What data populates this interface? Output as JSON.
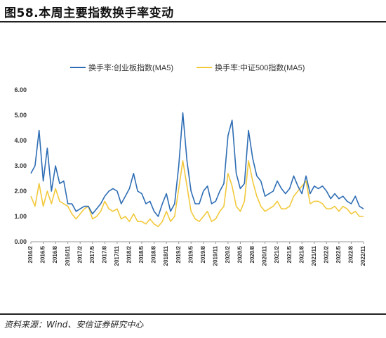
{
  "figure": {
    "title": "图58.本周主要指数换手率变动",
    "source": "资料来源：Wind、安信证券研究中心"
  },
  "chart_data": {
    "type": "line",
    "title": "",
    "xlabel": "",
    "ylabel": "",
    "ylim": [
      0,
      6
    ],
    "yticks": [
      "0.00",
      "1.00",
      "2.00",
      "3.00",
      "4.00",
      "5.00",
      "6.00"
    ],
    "xlim": [
      "2016/2",
      "2022/11"
    ],
    "xticks": [
      "2016/2",
      "2016/5",
      "2016/8",
      "2016/11",
      "2017/2",
      "2017/5",
      "2017/8",
      "2017/11",
      "2018/2",
      "2018/5",
      "2018/8",
      "2018/11",
      "2019/2",
      "2019/5",
      "2019/8",
      "2019/11",
      "2020/2",
      "2020/5",
      "2020/8",
      "2020/11",
      "2021/2",
      "2021/5",
      "2021/8",
      "2021/11",
      "2022/2",
      "2022/5",
      "2022/8",
      "2022/11"
    ],
    "grid": false,
    "legend_position": "top",
    "series": [
      {
        "name": "换手率:创业板指数(MA5)",
        "color": "#2E6DB4",
        "points": [
          [
            "2016/2",
            2.7
          ],
          [
            "2016/3",
            3.0
          ],
          [
            "2016/4",
            4.4
          ],
          [
            "2016/5",
            2.4
          ],
          [
            "2016/6",
            3.7
          ],
          [
            "2016/7",
            2.0
          ],
          [
            "2016/8",
            3.0
          ],
          [
            "2016/9",
            2.3
          ],
          [
            "2016/10",
            2.4
          ],
          [
            "2016/11",
            1.5
          ],
          [
            "2016/12",
            1.5
          ],
          [
            "2017/1",
            1.2
          ],
          [
            "2017/2",
            1.3
          ],
          [
            "2017/3",
            1.4
          ],
          [
            "2017/4",
            1.4
          ],
          [
            "2017/5",
            1.1
          ],
          [
            "2017/6",
            1.3
          ],
          [
            "2017/7",
            1.5
          ],
          [
            "2017/8",
            1.8
          ],
          [
            "2017/9",
            2.0
          ],
          [
            "2017/10",
            2.1
          ],
          [
            "2017/11",
            2.0
          ],
          [
            "2017/12",
            1.5
          ],
          [
            "2018/1",
            1.8
          ],
          [
            "2018/2",
            2.1
          ],
          [
            "2018/3",
            2.7
          ],
          [
            "2018/4",
            2.0
          ],
          [
            "2018/5",
            1.9
          ],
          [
            "2018/6",
            1.5
          ],
          [
            "2018/7",
            1.6
          ],
          [
            "2018/8",
            1.2
          ],
          [
            "2018/9",
            1.0
          ],
          [
            "2018/10",
            1.5
          ],
          [
            "2018/11",
            1.9
          ],
          [
            "2018/12",
            1.2
          ],
          [
            "2019/1",
            1.5
          ],
          [
            "2019/2",
            3.0
          ],
          [
            "2019/3",
            5.1
          ],
          [
            "2019/4",
            3.2
          ],
          [
            "2019/5",
            2.0
          ],
          [
            "2019/6",
            1.5
          ],
          [
            "2019/7",
            1.5
          ],
          [
            "2019/8",
            2.0
          ],
          [
            "2019/9",
            2.2
          ],
          [
            "2019/10",
            1.5
          ],
          [
            "2019/11",
            1.6
          ],
          [
            "2019/12",
            2.0
          ],
          [
            "2020/1",
            2.3
          ],
          [
            "2020/2",
            4.2
          ],
          [
            "2020/3",
            4.8
          ],
          [
            "2020/4",
            2.7
          ],
          [
            "2020/5",
            2.1
          ],
          [
            "2020/6",
            2.3
          ],
          [
            "2020/7",
            4.4
          ],
          [
            "2020/8",
            3.3
          ],
          [
            "2020/9",
            2.6
          ],
          [
            "2020/10",
            2.4
          ],
          [
            "2020/11",
            1.8
          ],
          [
            "2020/12",
            1.9
          ],
          [
            "2021/1",
            2.0
          ],
          [
            "2021/2",
            2.4
          ],
          [
            "2021/3",
            2.1
          ],
          [
            "2021/4",
            1.9
          ],
          [
            "2021/5",
            2.1
          ],
          [
            "2021/6",
            2.6
          ],
          [
            "2021/7",
            2.2
          ],
          [
            "2021/8",
            1.9
          ],
          [
            "2021/9",
            2.6
          ],
          [
            "2021/10",
            1.9
          ],
          [
            "2021/11",
            2.2
          ],
          [
            "2021/12",
            2.1
          ],
          [
            "2022/1",
            2.2
          ],
          [
            "2022/2",
            2.0
          ],
          [
            "2022/3",
            1.7
          ],
          [
            "2022/4",
            1.9
          ],
          [
            "2022/5",
            1.7
          ],
          [
            "2022/6",
            1.8
          ],
          [
            "2022/7",
            1.6
          ],
          [
            "2022/8",
            1.5
          ],
          [
            "2022/9",
            1.8
          ],
          [
            "2022/10",
            1.4
          ],
          [
            "2022/11",
            1.3
          ]
        ]
      },
      {
        "name": "换手率:中证500指数(MA5)",
        "color": "#F2C93B",
        "points": [
          [
            "2016/2",
            1.8
          ],
          [
            "2016/3",
            1.4
          ],
          [
            "2016/4",
            2.3
          ],
          [
            "2016/5",
            1.4
          ],
          [
            "2016/6",
            2.0
          ],
          [
            "2016/7",
            1.5
          ],
          [
            "2016/8",
            2.1
          ],
          [
            "2016/9",
            1.6
          ],
          [
            "2016/10",
            1.5
          ],
          [
            "2016/11",
            1.4
          ],
          [
            "2016/12",
            1.1
          ],
          [
            "2017/1",
            0.9
          ],
          [
            "2017/2",
            1.1
          ],
          [
            "2017/3",
            1.3
          ],
          [
            "2017/4",
            1.4
          ],
          [
            "2017/5",
            0.9
          ],
          [
            "2017/6",
            1.0
          ],
          [
            "2017/7",
            1.2
          ],
          [
            "2017/8",
            1.6
          ],
          [
            "2017/9",
            1.3
          ],
          [
            "2017/10",
            1.2
          ],
          [
            "2017/11",
            1.3
          ],
          [
            "2017/12",
            0.9
          ],
          [
            "2018/1",
            1.0
          ],
          [
            "2018/2",
            0.8
          ],
          [
            "2018/3",
            1.1
          ],
          [
            "2018/4",
            0.8
          ],
          [
            "2018/5",
            0.8
          ],
          [
            "2018/6",
            0.7
          ],
          [
            "2018/7",
            0.9
          ],
          [
            "2018/8",
            0.7
          ],
          [
            "2018/9",
            0.6
          ],
          [
            "2018/10",
            0.8
          ],
          [
            "2018/11",
            1.2
          ],
          [
            "2018/12",
            0.8
          ],
          [
            "2019/1",
            1.0
          ],
          [
            "2019/2",
            2.1
          ],
          [
            "2019/3",
            3.2
          ],
          [
            "2019/4",
            2.2
          ],
          [
            "2019/5",
            1.2
          ],
          [
            "2019/6",
            0.9
          ],
          [
            "2019/7",
            0.8
          ],
          [
            "2019/8",
            1.0
          ],
          [
            "2019/9",
            1.2
          ],
          [
            "2019/10",
            0.8
          ],
          [
            "2019/11",
            0.9
          ],
          [
            "2019/12",
            1.2
          ],
          [
            "2020/1",
            1.4
          ],
          [
            "2020/2",
            2.7
          ],
          [
            "2020/3",
            2.2
          ],
          [
            "2020/4",
            1.4
          ],
          [
            "2020/5",
            1.2
          ],
          [
            "2020/6",
            1.6
          ],
          [
            "2020/7",
            3.2
          ],
          [
            "2020/8",
            2.4
          ],
          [
            "2020/9",
            1.8
          ],
          [
            "2020/10",
            1.4
          ],
          [
            "2020/11",
            1.2
          ],
          [
            "2020/12",
            1.3
          ],
          [
            "2021/1",
            1.4
          ],
          [
            "2021/2",
            1.6
          ],
          [
            "2021/3",
            1.3
          ],
          [
            "2021/4",
            1.3
          ],
          [
            "2021/5",
            1.4
          ],
          [
            "2021/6",
            1.8
          ],
          [
            "2021/7",
            2.0
          ],
          [
            "2021/8",
            2.2
          ],
          [
            "2021/9",
            2.4
          ],
          [
            "2021/10",
            1.5
          ],
          [
            "2021/11",
            1.6
          ],
          [
            "2021/12",
            1.6
          ],
          [
            "2022/1",
            1.5
          ],
          [
            "2022/2",
            1.3
          ],
          [
            "2022/3",
            1.3
          ],
          [
            "2022/4",
            1.4
          ],
          [
            "2022/5",
            1.2
          ],
          [
            "2022/6",
            1.4
          ],
          [
            "2022/7",
            1.3
          ],
          [
            "2022/8",
            1.1
          ],
          [
            "2022/9",
            1.2
          ],
          [
            "2022/10",
            1.0
          ],
          [
            "2022/11",
            1.0
          ]
        ]
      }
    ]
  }
}
